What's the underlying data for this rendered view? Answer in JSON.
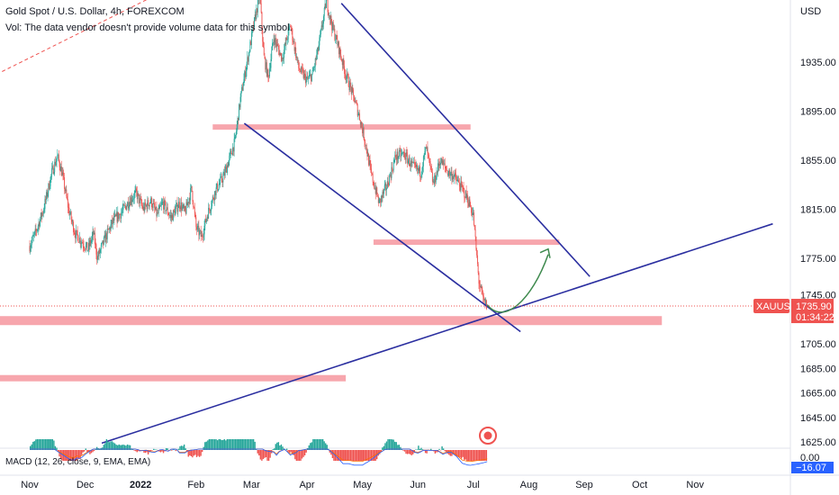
{
  "header": {
    "title": "Gold Spot / U.S. Dollar, 4h, FOREXCOM",
    "volume_note": "Vol: The data vendor doesn't provide volume data for this symbol."
  },
  "macd_label": "MACD (12, 26, close, 9, EMA, EMA)",
  "currency": "USD",
  "colors": {
    "up": "#26a69a",
    "down": "#ef5350",
    "zone": "#f7a1a9",
    "trendline": "#2b2fa0",
    "arrow": "#3e8a4e",
    "price_line": "#ef5350",
    "tag": "#ef5350",
    "macd_neg_tag": "#2962ff"
  },
  "price_tag": {
    "symbol": "XAUUSD",
    "price": "1735.90",
    "countdown": "01:34:22"
  },
  "macd_tags": {
    "zero": "0.00",
    "value": "−16.07"
  },
  "chart_data": {
    "type": "candlestick",
    "symbol": "XAUUSD",
    "timeframe": "4h",
    "y_axis": {
      "min": 1625,
      "max": 1985,
      "ticks": [
        1935,
        1895,
        1855,
        1815,
        1775,
        1745,
        1705,
        1685,
        1665,
        1645,
        1625
      ],
      "tick_labels": [
        "1935.00",
        "1895.00",
        "1855.00",
        "1815.00",
        "1775.00",
        "1745.00",
        "1705.00",
        "1685.00",
        "1665.00",
        "1645.00",
        "1625.00"
      ]
    },
    "x_axis": {
      "labels": [
        "Nov",
        "Dec",
        "2022",
        "Feb",
        "Mar",
        "Apr",
        "May",
        "Jun",
        "Jul",
        "Aug",
        "Sep",
        "Oct",
        "Nov"
      ],
      "bold": [
        "2022"
      ],
      "month_index": [
        0,
        1,
        2,
        3,
        4,
        5,
        6,
        7,
        8,
        9,
        10,
        11,
        12
      ]
    },
    "price_path": [
      [
        0.0,
        1785
      ],
      [
        0.1,
        1795
      ],
      [
        0.25,
        1815
      ],
      [
        0.4,
        1845
      ],
      [
        0.5,
        1858
      ],
      [
        0.58,
        1845
      ],
      [
        0.7,
        1815
      ],
      [
        0.82,
        1795
      ],
      [
        0.95,
        1788
      ],
      [
        1.05,
        1782
      ],
      [
        1.15,
        1795
      ],
      [
        1.22,
        1775
      ],
      [
        1.35,
        1790
      ],
      [
        1.5,
        1805
      ],
      [
        1.65,
        1812
      ],
      [
        1.8,
        1822
      ],
      [
        1.92,
        1828
      ],
      [
        2.05,
        1815
      ],
      [
        2.18,
        1822
      ],
      [
        2.3,
        1810
      ],
      [
        2.4,
        1820
      ],
      [
        2.55,
        1808
      ],
      [
        2.7,
        1820
      ],
      [
        2.8,
        1812
      ],
      [
        2.92,
        1832
      ],
      [
        3.0,
        1800
      ],
      [
        3.1,
        1792
      ],
      [
        3.2,
        1810
      ],
      [
        3.35,
        1830
      ],
      [
        3.5,
        1842
      ],
      [
        3.7,
        1870
      ],
      [
        3.8,
        1905
      ],
      [
        3.9,
        1930
      ],
      [
        4.0,
        1955
      ],
      [
        4.08,
        1975
      ],
      [
        4.15,
        1990
      ],
      [
        4.22,
        1940
      ],
      [
        4.3,
        1922
      ],
      [
        4.4,
        1955
      ],
      [
        4.55,
        1938
      ],
      [
        4.7,
        1965
      ],
      [
        4.85,
        1930
      ],
      [
        5.0,
        1920
      ],
      [
        5.1,
        1925
      ],
      [
        5.2,
        1945
      ],
      [
        5.35,
        1985
      ],
      [
        5.45,
        1965
      ],
      [
        5.55,
        1950
      ],
      [
        5.7,
        1925
      ],
      [
        5.85,
        1905
      ],
      [
        5.95,
        1890
      ],
      [
        6.05,
        1870
      ],
      [
        6.15,
        1845
      ],
      [
        6.3,
        1820
      ],
      [
        6.45,
        1835
      ],
      [
        6.6,
        1858
      ],
      [
        6.75,
        1860
      ],
      [
        6.9,
        1850
      ],
      [
        7.05,
        1845
      ],
      [
        7.15,
        1865
      ],
      [
        7.28,
        1835
      ],
      [
        7.4,
        1855
      ],
      [
        7.55,
        1845
      ],
      [
        7.65,
        1842
      ],
      [
        7.78,
        1833
      ],
      [
        7.9,
        1823
      ],
      [
        8.0,
        1810
      ],
      [
        8.05,
        1782
      ],
      [
        8.1,
        1756
      ],
      [
        8.18,
        1740
      ],
      [
        8.25,
        1735.9
      ]
    ],
    "annotations": {
      "zones": [
        {
          "price": 1882,
          "from": 3.3,
          "to": 7.95,
          "height": 6
        },
        {
          "price": 1788,
          "from": 6.2,
          "to": 9.55,
          "height": 6
        },
        {
          "price": 1724,
          "from": -0.6,
          "to": 11.4,
          "height": 10
        },
        {
          "price": 1677,
          "from": -0.6,
          "to": 5.7,
          "height": 7
        }
      ],
      "trendlines": [
        {
          "from": [
            3.87,
            1885
          ],
          "to": [
            8.85,
            1715
          ]
        },
        {
          "from": [
            5.62,
            1983
          ],
          "to": [
            10.1,
            1760
          ]
        },
        {
          "from": [
            1.3,
            1624
          ],
          "to": [
            13.4,
            1803
          ]
        }
      ],
      "dashed_line": {
        "from": [
          -0.6,
          1925
        ],
        "to": [
          2.2,
          1988
        ]
      },
      "projection_arrow": {
        "points": [
          [
            8.25,
            1737
          ],
          [
            8.55,
            1720
          ],
          [
            9.05,
            1740
          ],
          [
            9.35,
            1778
          ]
        ]
      }
    },
    "macd": {
      "last_value": -16.07,
      "zero": 0.0
    }
  }
}
